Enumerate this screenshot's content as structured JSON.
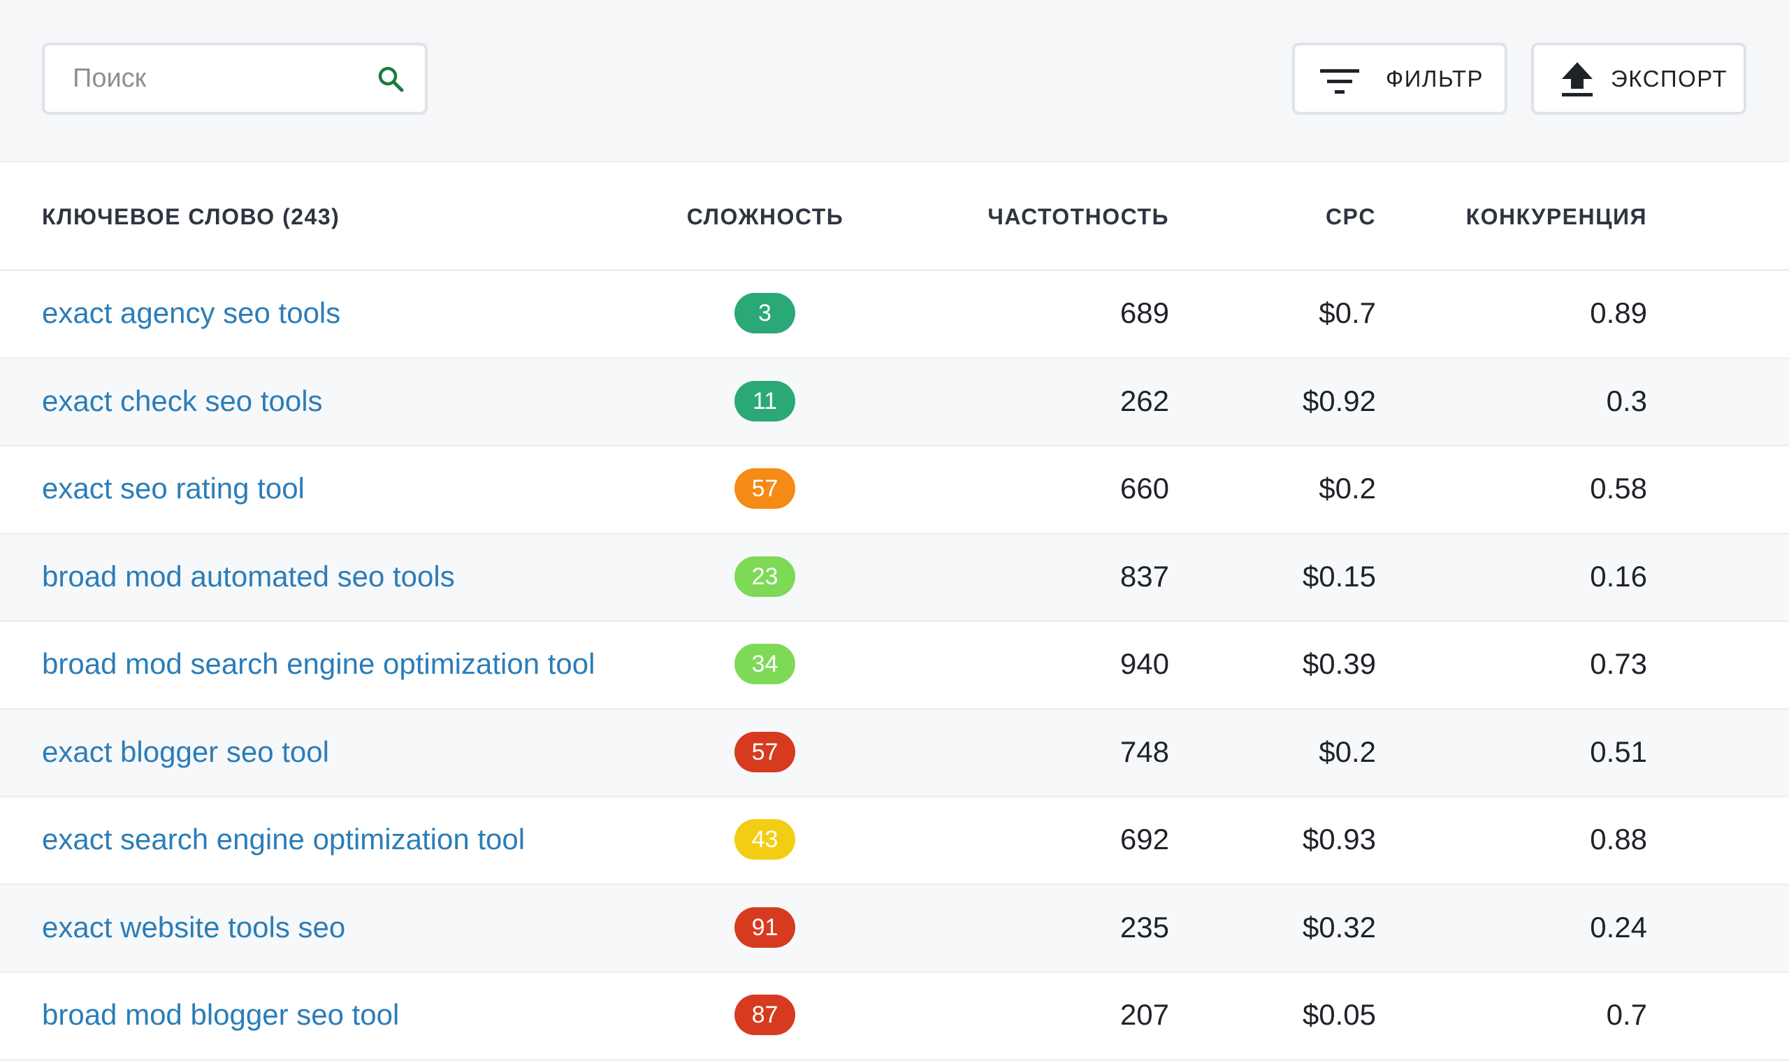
{
  "toolbar": {
    "search": {
      "placeholder": "Поиск",
      "value": ""
    },
    "filter_label": "ФИЛЬТР",
    "export_label": "ЭКСПОРТ"
  },
  "table": {
    "columns": {
      "keyword": "КЛЮЧЕВОЕ СЛОВО (243)",
      "difficulty": "СЛОЖНОСТЬ",
      "volume": "ЧАСТОТНОСТЬ",
      "cpc": "CPC",
      "competition": "КОНКУРЕНЦИЯ"
    },
    "rows": [
      {
        "keyword": "exact agency seo tools",
        "difficulty": "3",
        "difficulty_color": "#2aa876",
        "volume": "689",
        "cpc": "$0.7",
        "competition": "0.89"
      },
      {
        "keyword": "exact check seo tools",
        "difficulty": "11",
        "difficulty_color": "#2aa876",
        "volume": "262",
        "cpc": "$0.92",
        "competition": "0.3"
      },
      {
        "keyword": "exact seo rating tool",
        "difficulty": "57",
        "difficulty_color": "#f58a14",
        "volume": "660",
        "cpc": "$0.2",
        "competition": "0.58"
      },
      {
        "keyword": "broad mod automated seo tools",
        "difficulty": "23",
        "difficulty_color": "#7ed957",
        "volume": "837",
        "cpc": "$0.15",
        "competition": "0.16"
      },
      {
        "keyword": "broad mod search engine optimization tool",
        "difficulty": "34",
        "difficulty_color": "#7ed957",
        "volume": "940",
        "cpc": "$0.39",
        "competition": "0.73"
      },
      {
        "keyword": "exact blogger seo tool",
        "difficulty": "57",
        "difficulty_color": "#d63b1f",
        "volume": "748",
        "cpc": "$0.2",
        "competition": "0.51"
      },
      {
        "keyword": "exact search engine optimization tool",
        "difficulty": "43",
        "difficulty_color": "#f2cd13",
        "volume": "692",
        "cpc": "$0.93",
        "competition": "0.88"
      },
      {
        "keyword": "exact website tools seo",
        "difficulty": "91",
        "difficulty_color": "#d63b1f",
        "volume": "235",
        "cpc": "$0.32",
        "competition": "0.24"
      },
      {
        "keyword": "broad mod blogger seo tool",
        "difficulty": "87",
        "difficulty_color": "#d63b1f",
        "volume": "207",
        "cpc": "$0.05",
        "competition": "0.7"
      }
    ]
  },
  "icons": {
    "search": "search-icon",
    "filter": "filter-icon",
    "export": "upload-icon"
  },
  "colors": {
    "link": "#2b7db8",
    "search_icon": "#1e7a3c",
    "border": "#dfe2e6"
  }
}
